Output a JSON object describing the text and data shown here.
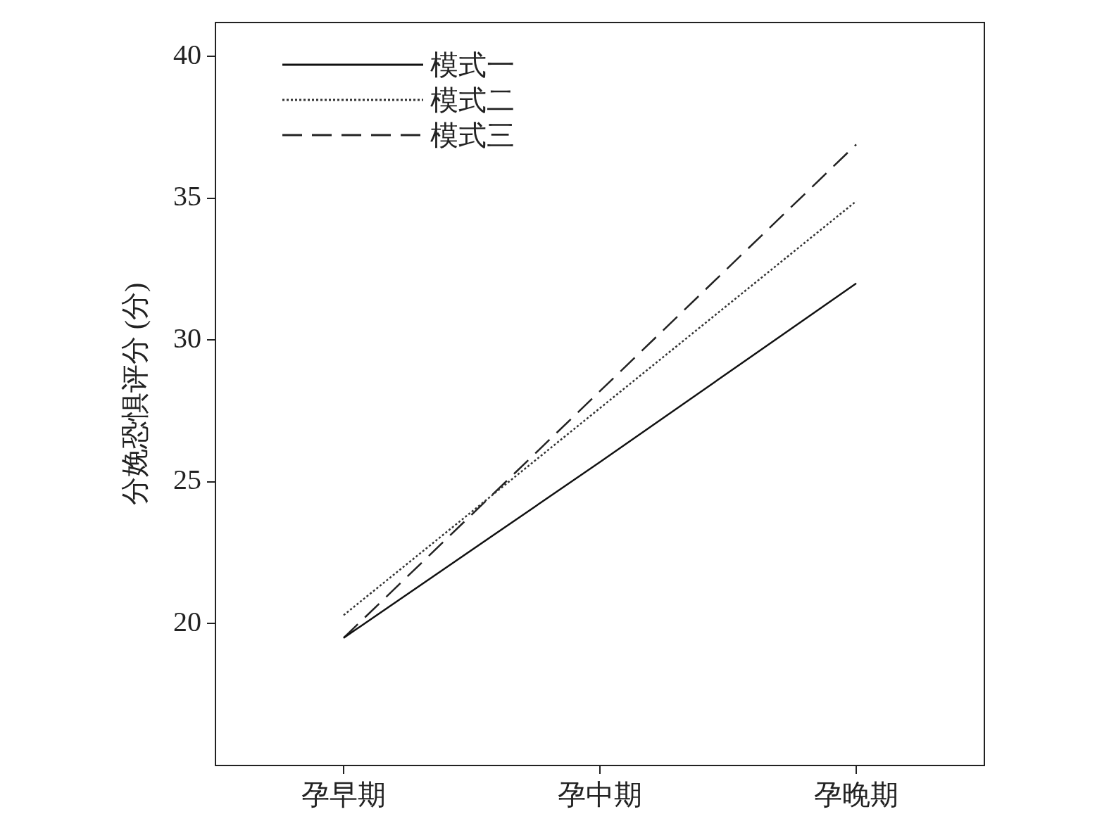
{
  "chart_data": {
    "type": "line",
    "ylabel": "分娩恐惧评分 (分)",
    "categories": [
      "孕早期",
      "孕中期",
      "孕晚期"
    ],
    "series": [
      {
        "name": "模式一",
        "color": "#111111",
        "values": [
          19.5,
          25.7,
          32.0
        ],
        "line_style": "solid"
      },
      {
        "name": "模式二",
        "color": "#333333",
        "values": [
          20.3,
          27.6,
          34.9
        ],
        "line_style": "dotted"
      },
      {
        "name": "模式三",
        "color": "#222222",
        "values": [
          19.5,
          28.2,
          36.9
        ],
        "line_style": "dashed"
      }
    ],
    "ylim": [
      15,
      41.2
    ],
    "yticks": [
      20,
      25,
      30,
      35,
      40
    ],
    "grid": false,
    "legend": "top left",
    "marker": "none"
  }
}
